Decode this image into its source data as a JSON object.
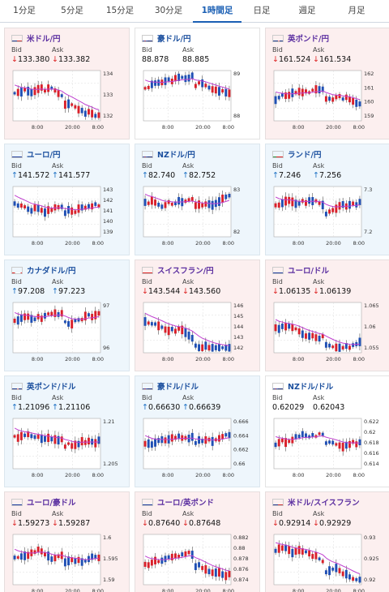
{
  "tabs": [
    "1分足",
    "5分足",
    "15分足",
    "30分足",
    "1時間足",
    "日足",
    "週足",
    "月足"
  ],
  "active_tab": 4,
  "bid_label": "Bid",
  "ask_label": "Ask",
  "xticks": [
    "8:00",
    "20:00",
    "8:00"
  ],
  "cards": [
    {
      "name": "米ドル/円",
      "flag": "us",
      "dir": "down",
      "bid": "133.380",
      "ask": "133.382",
      "arrow": "down",
      "yticks": [
        "134",
        "133",
        "132"
      ]
    },
    {
      "name": "豪ドル/円",
      "flag": "au",
      "dir": "flat",
      "bid": "88.878",
      "ask": "88.885",
      "arrow": "",
      "yticks": [
        "89",
        "88"
      ]
    },
    {
      "name": "英ポンド/円",
      "flag": "gb",
      "dir": "down",
      "bid": "161.524",
      "ask": "161.534",
      "arrow": "down",
      "yticks": [
        "162",
        "161",
        "160",
        "159"
      ]
    },
    {
      "name": "ユーロ/円",
      "flag": "eu",
      "dir": "up",
      "bid": "141.572",
      "ask": "141.577",
      "arrow": "up",
      "yticks": [
        "143",
        "142",
        "141",
        "140",
        "139"
      ]
    },
    {
      "name": "NZドル/円",
      "flag": "nz",
      "dir": "up",
      "bid": "82.740",
      "ask": "82.752",
      "arrow": "up",
      "yticks": [
        "83",
        "82"
      ]
    },
    {
      "name": "ランド/円",
      "flag": "za",
      "dir": "up",
      "bid": "7.246",
      "ask": "7.256",
      "arrow": "up",
      "yticks": [
        "7.3",
        "7.2"
      ]
    },
    {
      "name": "カナダドル/円",
      "flag": "ca",
      "dir": "up",
      "bid": "97.208",
      "ask": "97.223",
      "arrow": "up",
      "yticks": [
        "97",
        "96"
      ]
    },
    {
      "name": "スイスフラン/円",
      "flag": "ch",
      "dir": "down",
      "bid": "143.544",
      "ask": "143.560",
      "arrow": "down",
      "yticks": [
        "146",
        "145",
        "144",
        "143",
        "142"
      ]
    },
    {
      "name": "ユーロ/ドル",
      "flag": "eu",
      "dir": "down",
      "bid": "1.06135",
      "ask": "1.06139",
      "arrow": "down",
      "yticks": [
        "1.065",
        "1.06",
        "1.055"
      ]
    },
    {
      "name": "英ポンド/ドル",
      "flag": "gb",
      "dir": "up",
      "bid": "1.21096",
      "ask": "1.21106",
      "arrow": "up",
      "yticks": [
        "1.21",
        "1.205"
      ]
    },
    {
      "name": "豪ドル/ドル",
      "flag": "au",
      "dir": "up",
      "bid": "0.66630",
      "ask": "0.66639",
      "arrow": "up",
      "yticks": [
        "0.666",
        "0.664",
        "0.662",
        "0.66"
      ]
    },
    {
      "name": "NZドル/ドル",
      "flag": "nz",
      "dir": "flat",
      "bid": "0.62029",
      "ask": "0.62043",
      "arrow": "",
      "yticks": [
        "0.622",
        "0.62",
        "0.618",
        "0.616",
        "0.614"
      ]
    },
    {
      "name": "ユーロ/豪ドル",
      "flag": "eu",
      "dir": "down",
      "bid": "1.59273",
      "ask": "1.59287",
      "arrow": "down",
      "yticks": [
        "1.6",
        "1.595",
        "1.59"
      ]
    },
    {
      "name": "ユーロ/英ポンド",
      "flag": "eu",
      "dir": "down",
      "bid": "0.87640",
      "ask": "0.87648",
      "arrow": "down",
      "yticks": [
        "0.882",
        "0.88",
        "0.878",
        "0.876",
        "0.874"
      ]
    },
    {
      "name": "米ドル/スイスフラン",
      "flag": "us",
      "dir": "down",
      "bid": "0.92914",
      "ask": "0.92929",
      "arrow": "down",
      "yticks": [
        "0.93",
        "0.925",
        "0.92"
      ]
    }
  ],
  "colors": {
    "up_candle": "#d9202a",
    "down_candle": "#1f4fb4",
    "ma": "#c040d0",
    "down_arrow": "#d22222",
    "up_arrow": "#1a6fc4",
    "tab_active": "#1a5fb4"
  }
}
